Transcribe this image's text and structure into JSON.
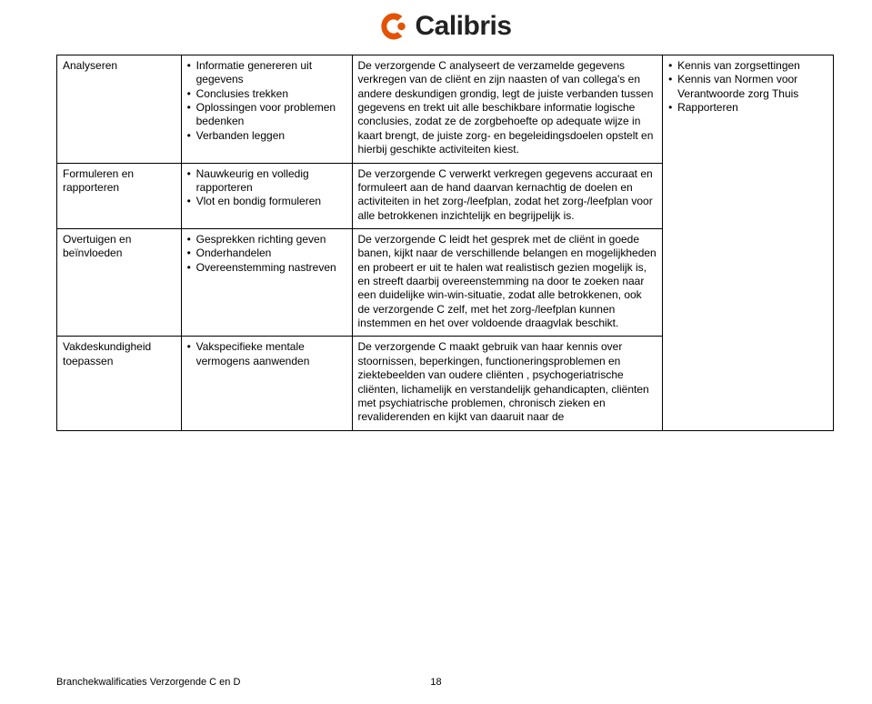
{
  "logo": {
    "text": "Calibris"
  },
  "table": {
    "rows": [
      {
        "col1": "Analyseren",
        "col2_items": [
          "Informatie genereren uit gegevens",
          "Conclusies trekken",
          "Oplossingen voor problemen bedenken",
          "Verbanden leggen"
        ],
        "col3": "De verzorgende C analyseert de verzamelde gegevens verkregen van de cliënt en zijn naasten of van collega's en andere deskundigen grondig, legt de juiste verbanden tussen gegevens en trekt uit alle beschikbare informatie logische conclusies, zodat ze de zorgbehoefte op adequate wijze in kaart brengt, de juiste zorg- en begeleidingsdoelen opstelt en hierbij geschikte activiteiten kiest.",
        "col4_items": [
          "Kennis van zorgsettingen",
          "Kennis van Normen voor Verantwoorde zorg Thuis",
          "Rapporteren"
        ]
      },
      {
        "col1": "Formuleren en rapporteren",
        "col2_items": [
          "Nauwkeurig en volledig rapporteren",
          "Vlot en bondig formuleren"
        ],
        "col3": "De verzorgende C verwerkt verkregen gegevens accuraat en formuleert aan de hand daarvan kernachtig de doelen en activiteiten in het zorg-/leefplan, zodat het zorg-/leefplan voor alle betrokkenen inzichtelijk en begrijpelijk is.",
        "col4_items": []
      },
      {
        "col1": "Overtuigen en beïnvloeden",
        "col2_items": [
          "Gesprekken richting geven",
          "Onderhandelen",
          "Overeenstemming nastreven"
        ],
        "col3": "De verzorgende C leidt het gesprek met de cliënt in goede banen, kijkt naar de verschillende belangen en mogelijkheden en probeert er uit te halen wat realistisch gezien mogelijk is, en streeft daarbij overeenstemming na door te zoeken naar een duidelijke win-win-situatie, zodat alle betrokkenen, ook de verzorgende C zelf, met het zorg-/leefplan kunnen instemmen en het over voldoende draagvlak beschikt.",
        "col4_items": []
      },
      {
        "col1": "Vakdeskundigheid toepassen",
        "col2_items": [
          "Vakspecifieke mentale vermogens aanwenden"
        ],
        "col3": "De verzorgende C maakt gebruik van haar kennis over stoornissen, beperkingen, functioneringsproblemen en ziektebeelden van oudere cliënten , psychogeriatrische cliënten, lichamelijk en verstandelijk gehandicapten, cliënten met psychiatrische problemen, chronisch zieken en revaliderenden en kijkt van daaruit naar de",
        "col4_items": []
      }
    ]
  },
  "footer_text": "Branchekwalificaties Verzorgende C en D",
  "page_number": "18",
  "colors": {
    "logo_orange": "#e35205",
    "border": "#000000",
    "text": "#000000",
    "background": "#ffffff"
  },
  "typography": {
    "body_fontsize_pt": 9,
    "logo_fontsize_pt": 22,
    "footer_fontsize_pt": 8
  }
}
